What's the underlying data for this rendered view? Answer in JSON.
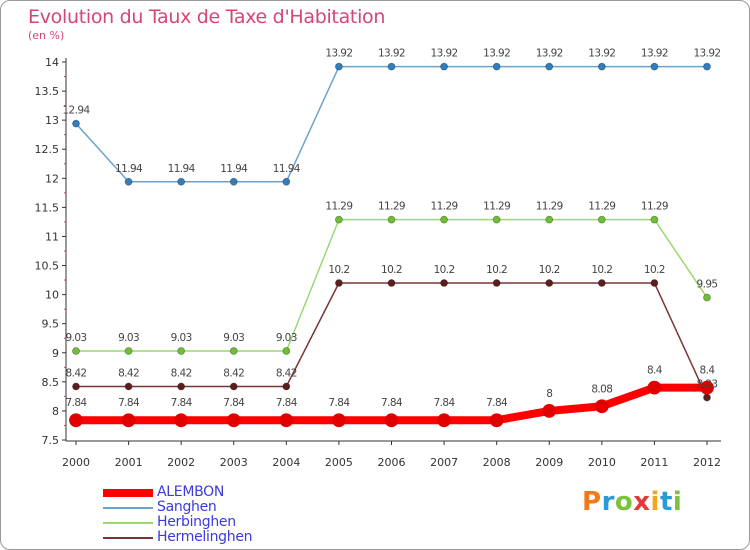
{
  "header": {
    "title": "Evolution du Taux de Taxe d'Habitation",
    "unit": "(en %)"
  },
  "logo": {
    "letters": [
      "P",
      "r",
      "o",
      "x",
      "i",
      "t",
      "i"
    ],
    "colors": [
      "#f07a1a",
      "#2a9ad8",
      "#7cc23a",
      "#e23a3a",
      "#f0a81a",
      "#2a9ad8",
      "#7cc23a"
    ]
  },
  "chart_data": {
    "type": "line",
    "title": "Evolution du Taux de Taxe d'Habitation",
    "ylabel": "(en %)",
    "xlabel": "",
    "ylim": [
      7.5,
      14
    ],
    "yticks": [
      7.5,
      8,
      8.5,
      9,
      9.5,
      10,
      10.5,
      11,
      11.5,
      12,
      12.5,
      13,
      13.5,
      14
    ],
    "ytick_labels": [
      "7.5",
      "8",
      "8.5",
      "9",
      "9.5",
      "10",
      "10.5",
      "11",
      "11.5",
      "12",
      "12.5",
      "13",
      "13.5",
      "14"
    ],
    "categories": [
      "2000",
      "2001",
      "2002",
      "2003",
      "2004",
      "2005",
      "2006",
      "2007",
      "2008",
      "2009",
      "2010",
      "2011",
      "2012"
    ],
    "grid": false,
    "legend_position": "bottom-left",
    "series": [
      {
        "name": "Sanghen",
        "color": "#6ba3cf",
        "marker_color": "#2f7ec0",
        "values": [
          12.94,
          11.94,
          11.94,
          11.94,
          11.94,
          13.92,
          13.92,
          13.92,
          13.92,
          13.92,
          13.92,
          13.92,
          13.92
        ],
        "labels": [
          "12.94",
          "11.94",
          "11.94",
          "11.94",
          "11.94",
          "13.92",
          "13.92",
          "13.92",
          "13.92",
          "13.92",
          "13.92",
          "13.92",
          "13.92"
        ]
      },
      {
        "name": "Herbinghen",
        "color": "#9bd870",
        "marker_color": "#6ec033",
        "values": [
          9.03,
          9.03,
          9.03,
          9.03,
          9.03,
          11.29,
          11.29,
          11.29,
          11.29,
          11.29,
          11.29,
          11.29,
          9.95
        ],
        "labels": [
          "9.03",
          "9.03",
          "9.03",
          "9.03",
          "9.03",
          "11.29",
          "11.29",
          "11.29",
          "11.29",
          "11.29",
          "11.29",
          "11.29",
          "9.95"
        ]
      },
      {
        "name": "Hermelinghen",
        "color": "#7a3535",
        "marker_color": "#5e1e1e",
        "values": [
          8.42,
          8.42,
          8.42,
          8.42,
          8.42,
          10.2,
          10.2,
          10.2,
          10.2,
          10.2,
          10.2,
          10.2,
          8.23
        ],
        "labels": [
          "8.42",
          "8.42",
          "8.42",
          "8.42",
          "8.42",
          "10.2",
          "10.2",
          "10.2",
          "10.2",
          "10.2",
          "10.2",
          "10.2",
          "8.23"
        ]
      },
      {
        "name": "ALEMBON",
        "color": "#ff0000",
        "marker_color": "#e00000",
        "values": [
          7.84,
          7.84,
          7.84,
          7.84,
          7.84,
          7.84,
          7.84,
          7.84,
          7.84,
          8,
          8.08,
          8.4,
          8.4
        ],
        "labels": [
          "7.84",
          "7.84",
          "7.84",
          "7.84",
          "7.84",
          "7.84",
          "7.84",
          "7.84",
          "7.84",
          "8",
          "8.08",
          "8.4",
          "8.4"
        ]
      }
    ],
    "legend": [
      {
        "name": "ALEMBON",
        "color": "#ff0000"
      },
      {
        "name": "Sanghen",
        "color": "#6ba3cf"
      },
      {
        "name": "Herbinghen",
        "color": "#9bd870"
      },
      {
        "name": "Hermelinghen",
        "color": "#7a3535"
      }
    ]
  }
}
